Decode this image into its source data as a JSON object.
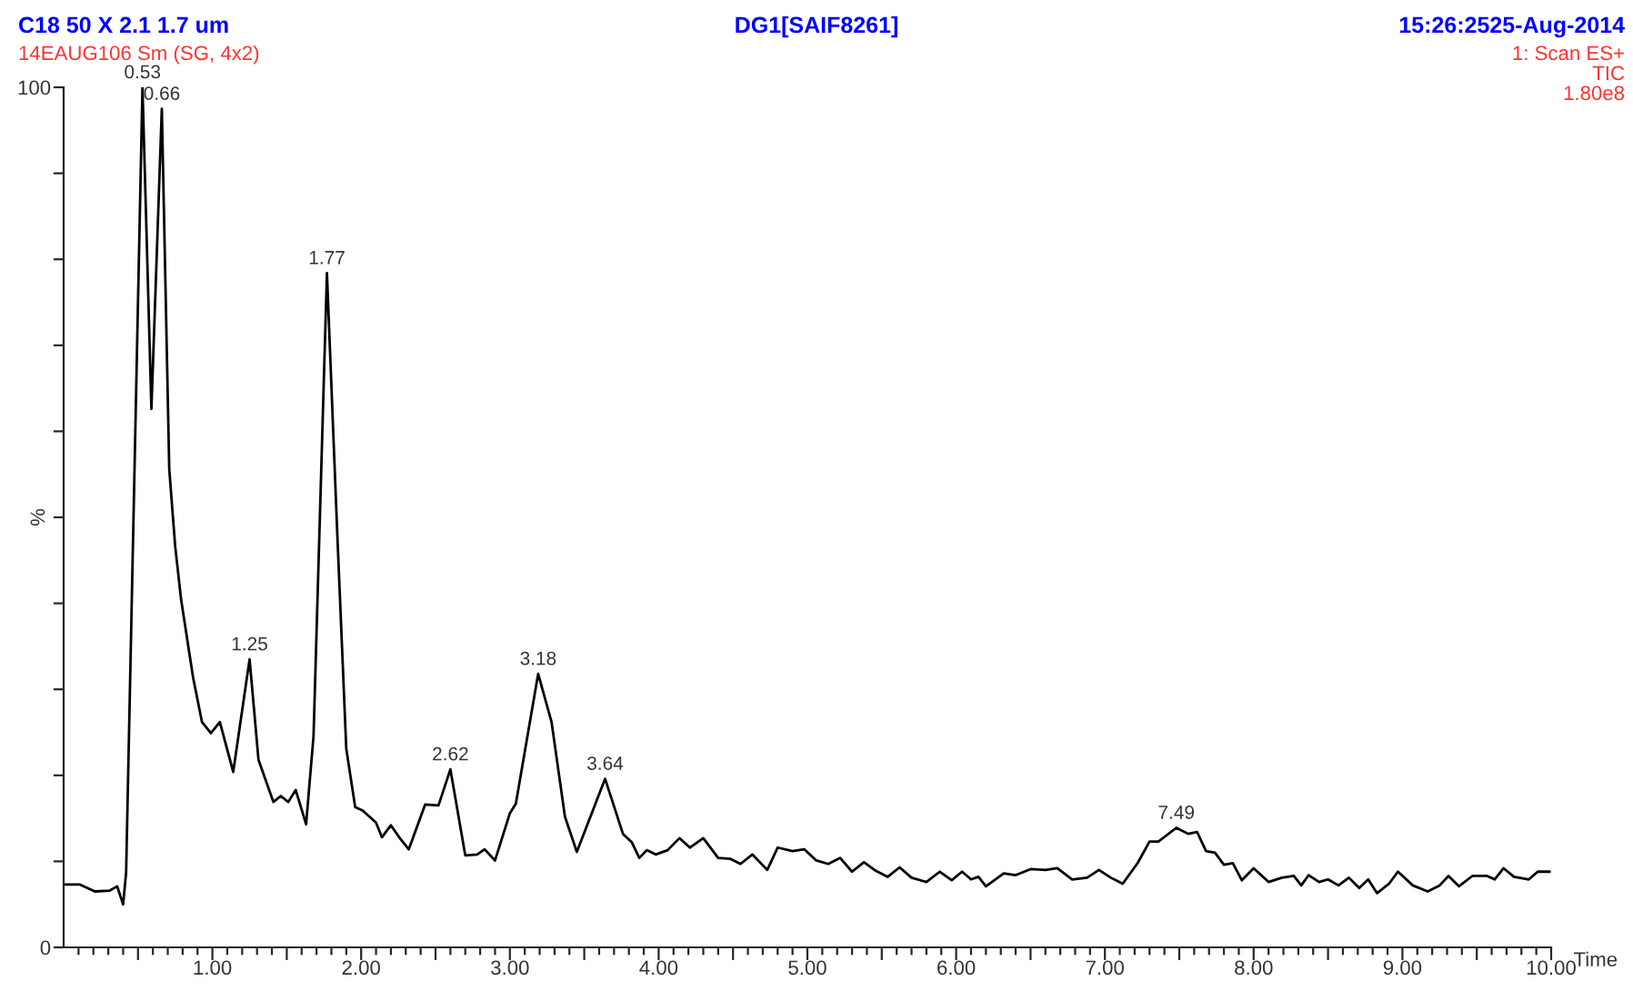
{
  "chart_data": {
    "type": "line",
    "title": "C18 50 X 2.1 1.7 um",
    "subtitle": "14EAUG106 Sm (SG, 4x2)",
    "xlabel": "Time",
    "ylabel": "%",
    "annotations": [
      "DG1[SAIF8261]",
      "15:26:2525-Aug-2014",
      "1: Scan ES+",
      "TIC",
      "1.80e8",
      {
        "text": "0.53",
        "x": 0.53,
        "y": 100
      },
      {
        "text": "0.66",
        "x": 0.66,
        "y": 97.5
      },
      {
        "text": "1.25",
        "x": 1.25,
        "y": 33.5
      },
      {
        "text": "1.77",
        "x": 1.77,
        "y": 78.4
      },
      {
        "text": "2.62",
        "x": 2.6,
        "y": 20.7
      },
      {
        "text": "3.18",
        "x": 3.19,
        "y": 31.8
      },
      {
        "text": "3.64",
        "x": 3.64,
        "y": 19.6
      },
      {
        "text": "7.49",
        "x": 7.48,
        "y": 13.9
      }
    ],
    "series": [
      {
        "color": "#000000",
        "x": [
          0.01,
          0.11,
          0.21,
          0.31,
          0.36,
          0.4,
          0.42,
          0.53,
          0.59,
          0.66,
          0.71,
          0.75,
          0.79,
          0.87,
          0.93,
          0.99,
          1.05,
          1.14,
          1.25,
          1.31,
          1.41,
          1.46,
          1.51,
          1.56,
          1.63,
          1.68,
          1.77,
          1.84,
          1.9,
          1.96,
          2.01,
          2.1,
          2.14,
          2.2,
          2.26,
          2.32,
          2.43,
          2.52,
          2.6,
          2.7,
          2.78,
          2.83,
          2.9,
          3.0,
          3.04,
          3.19,
          3.28,
          3.37,
          3.45,
          3.64,
          3.76,
          3.82,
          3.87,
          3.92,
          3.98,
          4.06,
          4.14,
          4.21,
          4.3,
          4.4,
          4.48,
          4.55,
          4.63,
          4.73,
          4.8,
          4.9,
          4.98,
          5.06,
          5.14,
          5.22,
          5.3,
          5.38,
          5.46,
          5.54,
          5.62,
          5.7,
          5.8,
          5.89,
          5.97,
          6.04,
          6.1,
          6.15,
          6.2,
          6.32,
          6.4,
          6.5,
          6.6,
          6.68,
          6.78,
          6.88,
          6.96,
          7.04,
          7.12,
          7.22,
          7.3,
          7.36,
          7.48,
          7.56,
          7.62,
          7.68,
          7.74,
          7.8,
          7.86,
          7.92,
          8.0,
          8.1,
          8.19,
          8.27,
          8.32,
          8.37,
          8.44,
          8.5,
          8.57,
          8.64,
          8.71,
          8.77,
          8.83,
          8.91,
          8.97,
          9.07,
          9.17,
          9.25,
          9.31,
          9.38,
          9.47,
          9.57,
          9.62,
          9.68,
          9.75,
          9.85,
          9.91,
          9.99
        ],
        "values": [
          7.3,
          7.3,
          6.5,
          6.6,
          7.1,
          5.0,
          8.7,
          100,
          62.6,
          97.5,
          55.6,
          46.6,
          40.4,
          31.4,
          26.2,
          24.9,
          26.2,
          20.4,
          33.5,
          21.8,
          16.9,
          17.6,
          16.9,
          18.3,
          14.3,
          24.6,
          78.4,
          47.9,
          23.1,
          16.3,
          15.9,
          14.5,
          12.8,
          14.2,
          12.7,
          11.4,
          16.6,
          16.5,
          20.7,
          10.7,
          10.8,
          11.4,
          10.1,
          15.6,
          16.7,
          31.8,
          26.2,
          15.2,
          11.1,
          19.6,
          13.2,
          12.2,
          10.4,
          11.3,
          10.8,
          11.3,
          12.7,
          11.6,
          12.7,
          10.4,
          10.3,
          9.7,
          10.8,
          9.0,
          11.6,
          11.2,
          11.4,
          10.1,
          9.7,
          10.4,
          8.8,
          9.9,
          8.9,
          8.2,
          9.3,
          8.1,
          7.6,
          8.8,
          7.8,
          8.8,
          7.9,
          8.2,
          7.1,
          8.6,
          8.4,
          9.1,
          9.0,
          9.2,
          7.9,
          8.1,
          9.0,
          8.1,
          7.4,
          9.8,
          12.3,
          12.3,
          13.9,
          13.2,
          13.4,
          11.2,
          11.0,
          9.6,
          9.8,
          7.8,
          9.2,
          7.6,
          8.1,
          8.3,
          7.2,
          8.4,
          7.6,
          7.9,
          7.2,
          8.1,
          6.9,
          7.9,
          6.3,
          7.4,
          8.8,
          7.2,
          6.5,
          7.2,
          8.3,
          7.1,
          8.3,
          8.3,
          7.9,
          9.2,
          8.2,
          7.9,
          8.8,
          8.8
        ]
      }
    ],
    "xlim": [
      0,
      10
    ],
    "ylim": [
      0,
      100
    ],
    "yticks": [
      0,
      {
        "value": 10,
        "label": null
      },
      {
        "value": 20,
        "label": null
      },
      {
        "value": 30,
        "label": null
      },
      {
        "value": 40,
        "label": null
      },
      {
        "value": 50,
        "label": null
      },
      {
        "value": 60,
        "label": null
      },
      {
        "value": 70,
        "label": null
      },
      {
        "value": 80,
        "label": null
      },
      {
        "value": 90,
        "label": null
      },
      100
    ],
    "xticks": [
      {
        "value": 0.1,
        "label": null
      },
      {
        "value": 0.2,
        "label": null
      },
      {
        "value": 0.3,
        "label": null
      },
      {
        "value": 0.4,
        "label": null
      },
      {
        "value": 0.5,
        "label": null
      },
      {
        "value": 0.6,
        "label": null
      },
      {
        "value": 0.7,
        "label": null
      },
      {
        "value": 0.8,
        "label": null
      },
      {
        "value": 0.9,
        "label": null
      },
      {
        "value": 1,
        "label": "1.00"
      },
      {
        "value": 1.1,
        "label": null
      },
      {
        "value": 1.2,
        "label": null
      },
      {
        "value": 1.3,
        "label": null
      },
      {
        "value": 1.4,
        "label": null
      },
      {
        "value": 1.5,
        "label": null
      },
      {
        "value": 1.6,
        "label": null
      },
      {
        "value": 1.7,
        "label": null
      },
      {
        "value": 1.8,
        "label": null
      },
      {
        "value": 1.9,
        "label": null
      },
      {
        "value": 2,
        "label": "2.00"
      },
      {
        "value": 2.1,
        "label": null
      },
      {
        "value": 2.2,
        "label": null
      },
      {
        "value": 2.3,
        "label": null
      },
      {
        "value": 2.4,
        "label": null
      },
      {
        "value": 2.5,
        "label": null
      },
      {
        "value": 2.6,
        "label": null
      },
      {
        "value": 2.7,
        "label": null
      },
      {
        "value": 2.8,
        "label": null
      },
      {
        "value": 2.9,
        "label": null
      },
      {
        "value": 3,
        "label": "3.00"
      },
      {
        "value": 3.1,
        "label": null
      },
      {
        "value": 3.2,
        "label": null
      },
      {
        "value": 3.3,
        "label": null
      },
      {
        "value": 3.4,
        "label": null
      },
      {
        "value": 3.5,
        "label": null
      },
      {
        "value": 3.6,
        "label": null
      },
      {
        "value": 3.7,
        "label": null
      },
      {
        "value": 3.8,
        "label": null
      },
      {
        "value": 3.9,
        "label": null
      },
      {
        "value": 4,
        "label": "4.00"
      },
      {
        "value": 4.1,
        "label": null
      },
      {
        "value": 4.2,
        "label": null
      },
      {
        "value": 4.3,
        "label": null
      },
      {
        "value": 4.4,
        "label": null
      },
      {
        "value": 4.5,
        "label": null
      },
      {
        "value": 4.6,
        "label": null
      },
      {
        "value": 4.7,
        "label": null
      },
      {
        "value": 4.8,
        "label": null
      },
      {
        "value": 4.9,
        "label": null
      },
      {
        "value": 5,
        "label": "5.00"
      },
      {
        "value": 5.1,
        "label": null
      },
      {
        "value": 5.2,
        "label": null
      },
      {
        "value": 5.3,
        "label": null
      },
      {
        "value": 5.4,
        "label": null
      },
      {
        "value": 5.5,
        "label": null
      },
      {
        "value": 5.6,
        "label": null
      },
      {
        "value": 5.7,
        "label": null
      },
      {
        "value": 5.8,
        "label": null
      },
      {
        "value": 5.9,
        "label": null
      },
      {
        "value": 6,
        "label": "6.00"
      },
      {
        "value": 6.1,
        "label": null
      },
      {
        "value": 6.2,
        "label": null
      },
      {
        "value": 6.3,
        "label": null
      },
      {
        "value": 6.4,
        "label": null
      },
      {
        "value": 6.5,
        "label": null
      },
      {
        "value": 6.6,
        "label": null
      },
      {
        "value": 6.7,
        "label": null
      },
      {
        "value": 6.8,
        "label": null
      },
      {
        "value": 6.9,
        "label": null
      },
      {
        "value": 7,
        "label": "7.00"
      },
      {
        "value": 7.1,
        "label": null
      },
      {
        "value": 7.2,
        "label": null
      },
      {
        "value": 7.3,
        "label": null
      },
      {
        "value": 7.4,
        "label": null
      },
      {
        "value": 7.5,
        "label": null
      },
      {
        "value": 7.6,
        "label": null
      },
      {
        "value": 7.7,
        "label": null
      },
      {
        "value": 7.8,
        "label": null
      },
      {
        "value": 7.9,
        "label": null
      },
      {
        "value": 8,
        "label": "8.00"
      },
      {
        "value": 8.1,
        "label": null
      },
      {
        "value": 8.2,
        "label": null
      },
      {
        "value": 8.3,
        "label": null
      },
      {
        "value": 8.4,
        "label": null
      },
      {
        "value": 8.5,
        "label": null
      },
      {
        "value": 8.6,
        "label": null
      },
      {
        "value": 8.7,
        "label": null
      },
      {
        "value": 8.8,
        "label": null
      },
      {
        "value": 8.9,
        "label": null
      },
      {
        "value": 9,
        "label": "9.00"
      },
      {
        "value": 9.1,
        "label": null
      },
      {
        "value": 9.2,
        "label": null
      },
      {
        "value": 9.3,
        "label": null
      },
      {
        "value": 9.4,
        "label": null
      },
      {
        "value": 9.5,
        "label": null
      },
      {
        "value": 9.6,
        "label": null
      },
      {
        "value": 9.7,
        "label": null
      },
      {
        "value": 9.8,
        "label": null
      },
      {
        "value": 9.9,
        "label": null
      },
      {
        "value": 10,
        "label": "10.00"
      }
    ],
    "grid": false,
    "legend": false,
    "marker": "none",
    "line_style": "solid"
  }
}
